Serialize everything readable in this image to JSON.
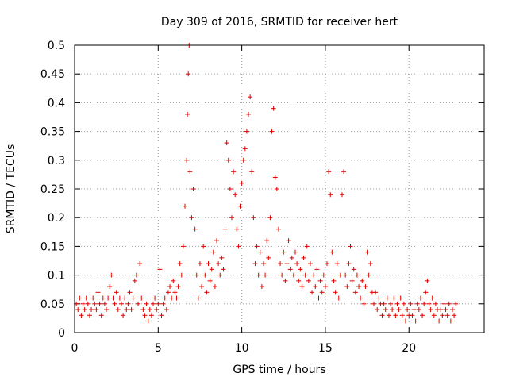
{
  "chart_data": {
    "type": "scatter",
    "title": "Day 309 of 2016, SRMTID for receiver hert",
    "xlabel": "GPS time / hours",
    "ylabel": "SRMTID / TECUs",
    "xlim": [
      0,
      24.5
    ],
    "ylim": [
      0,
      0.5
    ],
    "x_ticks": [
      0,
      5,
      10,
      15,
      20
    ],
    "x_tick_labels": [
      "0",
      "5",
      "10",
      "15",
      "20"
    ],
    "y_ticks": [
      0,
      0.05,
      0.1,
      0.15,
      0.2,
      0.25,
      0.3,
      0.35,
      0.4,
      0.45,
      0.5
    ],
    "y_tick_labels": [
      "0",
      "0.05",
      "0.1",
      "0.15",
      "0.2",
      "0.25",
      "0.3",
      "0.35",
      "0.4",
      "0.45",
      "0.5"
    ],
    "grid": true,
    "marker": "+",
    "marker_color": "#dd0000",
    "series": [
      {
        "name": "SRMTID",
        "points": [
          [
            0.1,
            0.05
          ],
          [
            0.2,
            0.04
          ],
          [
            0.3,
            0.06
          ],
          [
            0.4,
            0.03
          ],
          [
            0.5,
            0.05
          ],
          [
            0.6,
            0.04
          ],
          [
            0.7,
            0.06
          ],
          [
            0.8,
            0.05
          ],
          [
            0.9,
            0.03
          ],
          [
            1.0,
            0.04
          ],
          [
            1.1,
            0.06
          ],
          [
            1.2,
            0.05
          ],
          [
            1.3,
            0.04
          ],
          [
            1.4,
            0.07
          ],
          [
            1.5,
            0.05
          ],
          [
            1.6,
            0.03
          ],
          [
            1.7,
            0.06
          ],
          [
            1.8,
            0.05
          ],
          [
            1.9,
            0.04
          ],
          [
            2.0,
            0.06
          ],
          [
            2.1,
            0.08
          ],
          [
            2.2,
            0.1
          ],
          [
            2.3,
            0.06
          ],
          [
            2.4,
            0.05
          ],
          [
            2.5,
            0.07
          ],
          [
            2.6,
            0.04
          ],
          [
            2.7,
            0.06
          ],
          [
            2.8,
            0.05
          ],
          [
            2.9,
            0.03
          ],
          [
            3.0,
            0.06
          ],
          [
            3.1,
            0.04
          ],
          [
            3.2,
            0.05
          ],
          [
            3.3,
            0.07
          ],
          [
            3.4,
            0.04
          ],
          [
            3.5,
            0.06
          ],
          [
            3.6,
            0.09
          ],
          [
            3.7,
            0.1
          ],
          [
            3.8,
            0.05
          ],
          [
            3.9,
            0.12
          ],
          [
            4.0,
            0.06
          ],
          [
            4.1,
            0.04
          ],
          [
            4.2,
            0.03
          ],
          [
            4.3,
            0.05
          ],
          [
            4.4,
            0.02
          ],
          [
            4.5,
            0.04
          ],
          [
            4.6,
            0.03
          ],
          [
            4.7,
            0.05
          ],
          [
            4.8,
            0.06
          ],
          [
            4.9,
            0.04
          ],
          [
            5.0,
            0.05
          ],
          [
            5.1,
            0.11
          ],
          [
            5.2,
            0.03
          ],
          [
            5.3,
            0.05
          ],
          [
            5.4,
            0.06
          ],
          [
            5.5,
            0.04
          ],
          [
            5.6,
            0.07
          ],
          [
            5.7,
            0.08
          ],
          [
            5.8,
            0.06
          ],
          [
            5.9,
            0.09
          ],
          [
            6.0,
            0.07
          ],
          [
            6.1,
            0.06
          ],
          [
            6.2,
            0.08
          ],
          [
            6.3,
            0.12
          ],
          [
            6.4,
            0.1
          ],
          [
            6.5,
            0.15
          ],
          [
            6.6,
            0.22
          ],
          [
            6.7,
            0.3
          ],
          [
            6.75,
            0.38
          ],
          [
            6.8,
            0.45
          ],
          [
            6.85,
            0.5
          ],
          [
            6.9,
            0.28
          ],
          [
            7.0,
            0.2
          ],
          [
            7.1,
            0.25
          ],
          [
            7.2,
            0.18
          ],
          [
            7.3,
            0.1
          ],
          [
            7.4,
            0.06
          ],
          [
            7.5,
            0.12
          ],
          [
            7.6,
            0.08
          ],
          [
            7.7,
            0.15
          ],
          [
            7.8,
            0.1
          ],
          [
            7.9,
            0.07
          ],
          [
            8.0,
            0.12
          ],
          [
            8.1,
            0.09
          ],
          [
            8.2,
            0.11
          ],
          [
            8.3,
            0.14
          ],
          [
            8.4,
            0.08
          ],
          [
            8.5,
            0.16
          ],
          [
            8.6,
            0.12
          ],
          [
            8.7,
            0.1
          ],
          [
            8.8,
            0.13
          ],
          [
            8.9,
            0.11
          ],
          [
            9.0,
            0.18
          ],
          [
            9.1,
            0.33
          ],
          [
            9.2,
            0.3
          ],
          [
            9.3,
            0.25
          ],
          [
            9.4,
            0.2
          ],
          [
            9.5,
            0.28
          ],
          [
            9.6,
            0.24
          ],
          [
            9.7,
            0.18
          ],
          [
            9.8,
            0.15
          ],
          [
            9.9,
            0.22
          ],
          [
            10.0,
            0.26
          ],
          [
            10.1,
            0.3
          ],
          [
            10.2,
            0.32
          ],
          [
            10.3,
            0.35
          ],
          [
            10.4,
            0.38
          ],
          [
            10.5,
            0.41
          ],
          [
            10.6,
            0.28
          ],
          [
            10.7,
            0.2
          ],
          [
            10.8,
            0.12
          ],
          [
            10.9,
            0.15
          ],
          [
            11.0,
            0.1
          ],
          [
            11.1,
            0.14
          ],
          [
            11.2,
            0.08
          ],
          [
            11.3,
            0.12
          ],
          [
            11.4,
            0.1
          ],
          [
            11.5,
            0.16
          ],
          [
            11.6,
            0.13
          ],
          [
            11.7,
            0.2
          ],
          [
            11.8,
            0.35
          ],
          [
            11.9,
            0.39
          ],
          [
            12.0,
            0.27
          ],
          [
            12.1,
            0.25
          ],
          [
            12.2,
            0.18
          ],
          [
            12.3,
            0.12
          ],
          [
            12.4,
            0.1
          ],
          [
            12.5,
            0.14
          ],
          [
            12.6,
            0.09
          ],
          [
            12.7,
            0.12
          ],
          [
            12.8,
            0.16
          ],
          [
            12.9,
            0.11
          ],
          [
            13.0,
            0.13
          ],
          [
            13.1,
            0.1
          ],
          [
            13.2,
            0.14
          ],
          [
            13.3,
            0.12
          ],
          [
            13.4,
            0.09
          ],
          [
            13.5,
            0.11
          ],
          [
            13.6,
            0.08
          ],
          [
            13.7,
            0.13
          ],
          [
            13.8,
            0.1
          ],
          [
            13.9,
            0.15
          ],
          [
            14.0,
            0.09
          ],
          [
            14.1,
            0.12
          ],
          [
            14.2,
            0.07
          ],
          [
            14.3,
            0.1
          ],
          [
            14.4,
            0.08
          ],
          [
            14.5,
            0.11
          ],
          [
            14.6,
            0.06
          ],
          [
            14.7,
            0.09
          ],
          [
            14.8,
            0.07
          ],
          [
            14.9,
            0.1
          ],
          [
            15.0,
            0.08
          ],
          [
            15.1,
            0.12
          ],
          [
            15.2,
            0.28
          ],
          [
            15.3,
            0.24
          ],
          [
            15.4,
            0.14
          ],
          [
            15.5,
            0.09
          ],
          [
            15.6,
            0.07
          ],
          [
            15.7,
            0.12
          ],
          [
            15.8,
            0.06
          ],
          [
            15.9,
            0.1
          ],
          [
            16.0,
            0.24
          ],
          [
            16.1,
            0.28
          ],
          [
            16.2,
            0.1
          ],
          [
            16.3,
            0.08
          ],
          [
            16.4,
            0.12
          ],
          [
            16.5,
            0.15
          ],
          [
            16.6,
            0.09
          ],
          [
            16.7,
            0.11
          ],
          [
            16.8,
            0.07
          ],
          [
            16.9,
            0.1
          ],
          [
            17.0,
            0.08
          ],
          [
            17.1,
            0.06
          ],
          [
            17.2,
            0.09
          ],
          [
            17.3,
            0.05
          ],
          [
            17.4,
            0.08
          ],
          [
            17.5,
            0.14
          ],
          [
            17.6,
            0.1
          ],
          [
            17.7,
            0.12
          ],
          [
            17.8,
            0.07
          ],
          [
            17.9,
            0.05
          ],
          [
            18.0,
            0.07
          ],
          [
            18.1,
            0.04
          ],
          [
            18.2,
            0.06
          ],
          [
            18.3,
            0.05
          ],
          [
            18.4,
            0.03
          ],
          [
            18.5,
            0.05
          ],
          [
            18.6,
            0.04
          ],
          [
            18.7,
            0.06
          ],
          [
            18.8,
            0.03
          ],
          [
            18.9,
            0.05
          ],
          [
            19.0,
            0.04
          ],
          [
            19.1,
            0.06
          ],
          [
            19.2,
            0.03
          ],
          [
            19.3,
            0.05
          ],
          [
            19.4,
            0.04
          ],
          [
            19.5,
            0.06
          ],
          [
            19.6,
            0.03
          ],
          [
            19.7,
            0.05
          ],
          [
            19.8,
            0.02
          ],
          [
            19.9,
            0.04
          ],
          [
            20.0,
            0.03
          ],
          [
            20.1,
            0.05
          ],
          [
            20.2,
            0.03
          ],
          [
            20.3,
            0.04
          ],
          [
            20.4,
            0.02
          ],
          [
            20.5,
            0.05
          ],
          [
            20.6,
            0.04
          ],
          [
            20.7,
            0.06
          ],
          [
            20.8,
            0.03
          ],
          [
            20.9,
            0.05
          ],
          [
            21.0,
            0.07
          ],
          [
            21.1,
            0.09
          ],
          [
            21.2,
            0.05
          ],
          [
            21.3,
            0.04
          ],
          [
            21.4,
            0.06
          ],
          [
            21.5,
            0.03
          ],
          [
            21.6,
            0.05
          ],
          [
            21.7,
            0.04
          ],
          [
            21.8,
            0.02
          ],
          [
            21.9,
            0.04
          ],
          [
            22.0,
            0.03
          ],
          [
            22.1,
            0.05
          ],
          [
            22.2,
            0.04
          ],
          [
            22.3,
            0.03
          ],
          [
            22.4,
            0.05
          ],
          [
            22.5,
            0.02
          ],
          [
            22.6,
            0.04
          ],
          [
            22.7,
            0.03
          ],
          [
            22.8,
            0.05
          ]
        ]
      }
    ]
  }
}
